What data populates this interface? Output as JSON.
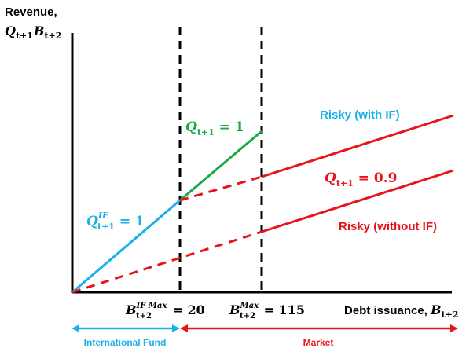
{
  "axes": {
    "ylabel_line1": "Revenue,",
    "ylabel_math": {
      "a": "Q",
      "a_sub": "t+1",
      "b": "B",
      "b_sub": "t+2"
    },
    "xlabel_text": "Debt issuance, ",
    "xlabel_math": {
      "v": "B",
      "v_sub": "t+2"
    }
  },
  "thresholds": [
    {
      "sym": "B",
      "sup": "IF Max",
      "sub": "t+2",
      "eq": " = ",
      "value": "20"
    },
    {
      "sym": "B",
      "sup": "Max",
      "sub": "t+2",
      "eq": " = ",
      "value": "115"
    }
  ],
  "labels": {
    "q_if": {
      "sym": "Q",
      "sup": "IF",
      "sub": "t+1",
      "rhs": " = 1"
    },
    "q_green": {
      "sym": "Q",
      "sub": "t+1",
      "rhs": " = 1"
    },
    "q_red": {
      "sym": "Q",
      "sub": "t+1",
      "rhs": " = 0.9"
    },
    "risky_with": "Risky (with IF)",
    "risky_without": "Risky (without IF)"
  },
  "bottom": {
    "international_fund": "International Fund",
    "market": "Market"
  },
  "colors": {
    "blue": "#1ab0ea",
    "green": "#1aa84a",
    "red": "#e8141b",
    "axis": "#000000"
  }
}
